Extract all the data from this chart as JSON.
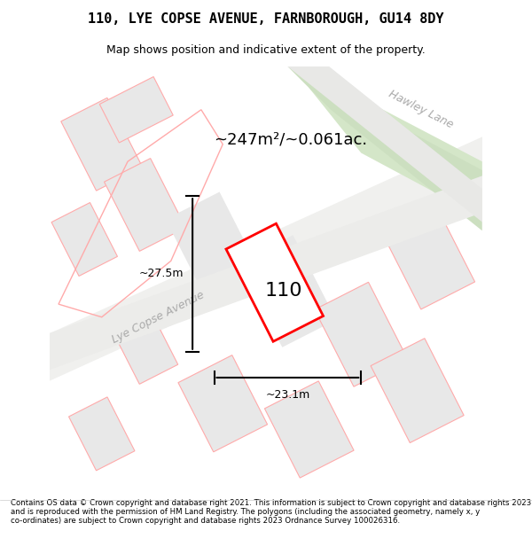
{
  "title": "110, LYE COPSE AVENUE, FARNBOROUGH, GU14 8DY",
  "subtitle": "Map shows position and indicative extent of the property.",
  "footer": "Contains OS data © Crown copyright and database right 2021. This information is subject to Crown copyright and database rights 2023 and is reproduced with the permission of HM Land Registry. The polygons (including the associated geometry, namely x, y co-ordinates) are subject to Crown copyright and database rights 2023 Ordnance Survey 100026316.",
  "area_label": "~247m²/~0.061ac.",
  "width_label": "~23.1m",
  "height_label": "~27.5m",
  "house_number": "110",
  "bg_color": "#f5f4f0",
  "map_bg": "#f8f8f6",
  "road_color_lye": "#e8e8e8",
  "road_label_color": "#aaaaaa",
  "plot_outline_color": "#ff0000",
  "plot_fill_color": "white",
  "other_plot_fill": "#e0e0e0",
  "other_plot_outline": "#ffaaaa",
  "green_area_color": "#d4e6c8",
  "dimension_color": "#111111",
  "map_area": [
    0.0,
    0.08,
    1.0,
    0.82
  ]
}
